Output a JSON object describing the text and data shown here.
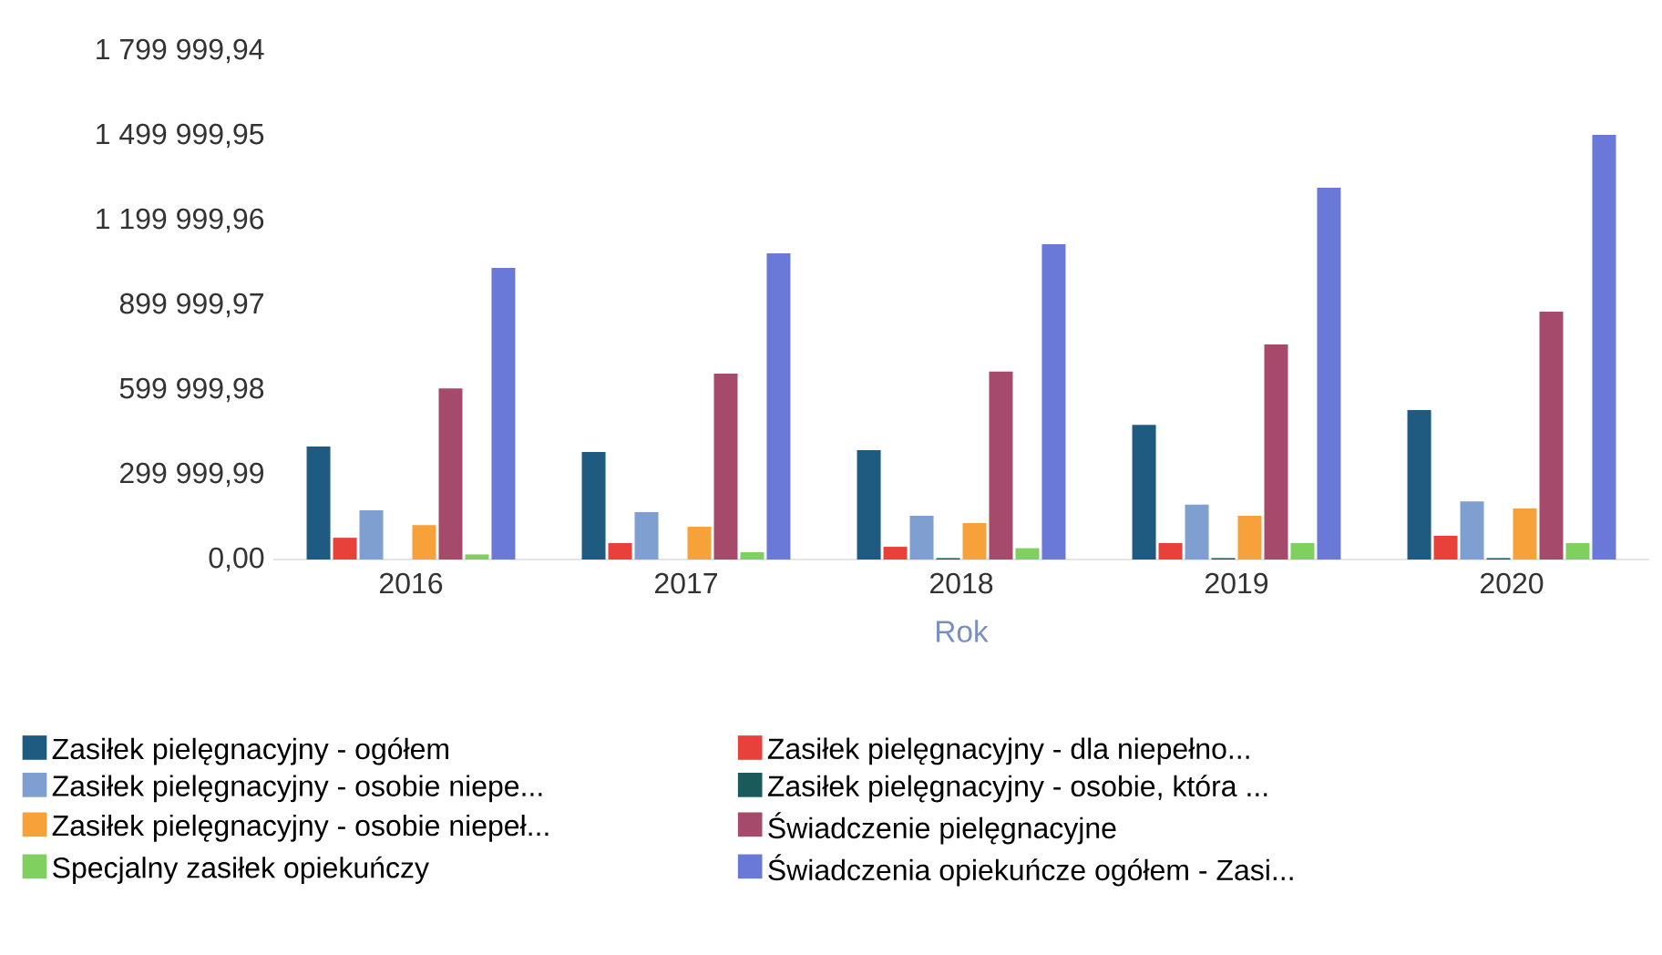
{
  "chart_data": {
    "type": "bar",
    "xlabel": "Rok",
    "categories": [
      "2016",
      "2017",
      "2018",
      "2019",
      "2020"
    ],
    "series": [
      {
        "name": "Zasiłek pielęgnacyjny - ogółem",
        "color": "#1f5b80",
        "values": [
          400000,
          381000,
          387000,
          477000,
          529000
        ]
      },
      {
        "name": "Zasiłek pielęgnacyjny - dla niepełno...",
        "color": "#e8403a",
        "values": [
          77000,
          58000,
          45000,
          58000,
          84000
        ]
      },
      {
        "name": "Zasiłek pielęgnacyjny - osobie niepe...",
        "color": "#7f9fd0",
        "values": [
          174000,
          168000,
          155000,
          194000,
          206000
        ]
      },
      {
        "name": "Zasiłek pielęgnacyjny - osobie, która ...",
        "color": "#1a5a5a",
        "values": [
          0,
          0,
          5000,
          5000,
          5000
        ]
      },
      {
        "name": "Zasiłek pielęgnacyjny -  osobie niepeł...",
        "color": "#f7a13a",
        "values": [
          122000,
          116000,
          129000,
          155000,
          181000
        ]
      },
      {
        "name": "Świadczenie pielęgnacyjne",
        "color": "#a54a6a",
        "values": [
          606000,
          658000,
          665000,
          761000,
          877000
        ]
      },
      {
        "name": "Specjalny zasiłek opiekuńczy",
        "color": "#80d060",
        "values": [
          18000,
          26000,
          40000,
          58000,
          58000
        ]
      },
      {
        "name": "Świadczenia opiekuńcze ogółem - Zasi...",
        "color": "#6a78d8",
        "values": [
          1032000,
          1084000,
          1116000,
          1316000,
          1503000
        ]
      }
    ],
    "ylim": [
      0,
      1799999.94
    ],
    "yticks": [
      {
        "value": 0,
        "label": "0,00"
      },
      {
        "value": 299999.99,
        "label": "299 999,99"
      },
      {
        "value": 599999.98,
        "label": "599 999,98"
      },
      {
        "value": 899999.97,
        "label": "899 999,97"
      },
      {
        "value": 1199999.96,
        "label": "1 199 999,96"
      },
      {
        "value": 1499999.95,
        "label": "1 499 999,95"
      },
      {
        "value": 1799999.94,
        "label": "1 799 999,94"
      }
    ],
    "legend": "bottom"
  }
}
